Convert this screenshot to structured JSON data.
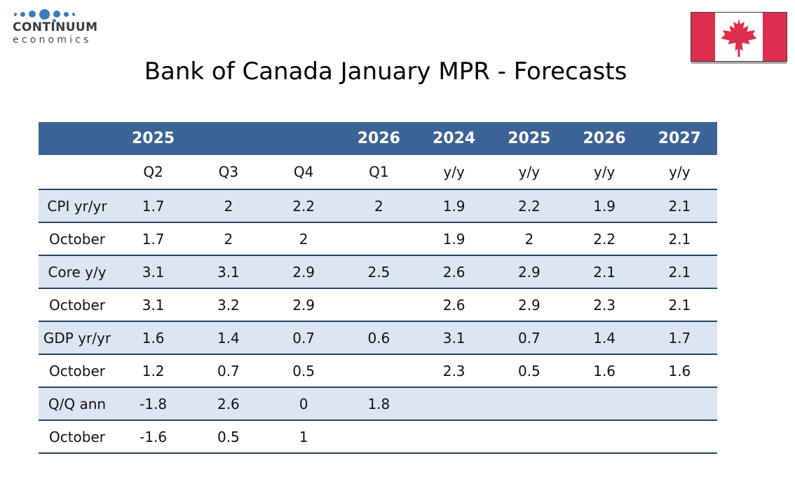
{
  "logo": {
    "line1": "CONTINUUM",
    "line2": "economics"
  },
  "flag": {
    "name": "canada-flag"
  },
  "title": "Bank of Canada January MPR - Forecasts",
  "colors": {
    "header_bg": "#3B6395",
    "header_text": "#ffffff",
    "row_shaded_bg": "#DCE6F1",
    "table_border": "#24436B",
    "flag_red": "#DE2E4D",
    "logo_dot": "#3B7DBD",
    "logo_text": "#3A3A3A",
    "title_text": "#000000"
  },
  "table": {
    "year_header": [
      "",
      "2025",
      "",
      "",
      "2026",
      "2024",
      "2025",
      "2026",
      "2027"
    ],
    "period_header": [
      "",
      "Q2",
      "Q3",
      "Q4",
      "Q1",
      "y/y",
      "y/y",
      "y/y",
      "y/y"
    ],
    "rows": [
      {
        "label": "CPI yr/yr",
        "shaded": true,
        "values": [
          "1.7",
          "2",
          "2.2",
          "2",
          "1.9",
          "2.2",
          "1.9",
          "2.1"
        ]
      },
      {
        "label": "October",
        "shaded": false,
        "values": [
          "1.7",
          "2",
          "2",
          "",
          "1.9",
          "2",
          "2.2",
          "2.1"
        ]
      },
      {
        "label": "Core y/y",
        "shaded": true,
        "values": [
          "3.1",
          "3.1",
          "2.9",
          "2.5",
          "2.6",
          "2.9",
          "2.1",
          "2.1"
        ]
      },
      {
        "label": "October",
        "shaded": false,
        "values": [
          "3.1",
          "3.2",
          "2.9",
          "",
          "2.6",
          "2.9",
          "2.3",
          "2.1"
        ]
      },
      {
        "label": "GDP yr/yr",
        "shaded": true,
        "values": [
          "1.6",
          "1.4",
          "0.7",
          "0.6",
          "3.1",
          "0.7",
          "1.4",
          "1.7"
        ]
      },
      {
        "label": "October",
        "shaded": false,
        "values": [
          "1.2",
          "0.7",
          "0.5",
          "",
          "2.3",
          "0.5",
          "1.6",
          "1.6"
        ]
      },
      {
        "label": "Q/Q ann",
        "shaded": true,
        "values": [
          "-1.8",
          "2.6",
          "0",
          "1.8",
          "",
          "",
          "",
          ""
        ]
      },
      {
        "label": "October",
        "shaded": false,
        "values": [
          "-1.6",
          "0.5",
          "1",
          "",
          "",
          "",
          "",
          ""
        ]
      }
    ]
  },
  "chart_data": {
    "type": "table",
    "title": "Bank of Canada January MPR - Forecasts",
    "columns": [
      "",
      "2025 Q2",
      "2025 Q3",
      "2025 Q4",
      "2026 Q1",
      "2024 y/y",
      "2025 y/y",
      "2026 y/y",
      "2027 y/y"
    ],
    "rows": [
      [
        "CPI yr/yr",
        1.7,
        2,
        2.2,
        2,
        1.9,
        2.2,
        1.9,
        2.1
      ],
      [
        "October",
        1.7,
        2,
        2,
        null,
        1.9,
        2,
        2.2,
        2.1
      ],
      [
        "Core y/y",
        3.1,
        3.1,
        2.9,
        2.5,
        2.6,
        2.9,
        2.1,
        2.1
      ],
      [
        "October",
        3.1,
        3.2,
        2.9,
        null,
        2.6,
        2.9,
        2.3,
        2.1
      ],
      [
        "GDP yr/yr",
        1.6,
        1.4,
        0.7,
        0.6,
        3.1,
        0.7,
        1.4,
        1.7
      ],
      [
        "October",
        1.2,
        0.7,
        0.5,
        null,
        2.3,
        0.5,
        1.6,
        1.6
      ],
      [
        "Q/Q ann",
        -1.8,
        2.6,
        0,
        1.8,
        null,
        null,
        null,
        null
      ],
      [
        "October",
        -1.6,
        0.5,
        1,
        null,
        null,
        null,
        null,
        null
      ]
    ],
    "layout_hints": {
      "shaded_rows": [
        0,
        2,
        4,
        6
      ],
      "header_style": "dark-blue band with white bold year labels",
      "notes": "October rows show previous (October MPR) forecasts below each January forecast row"
    }
  }
}
